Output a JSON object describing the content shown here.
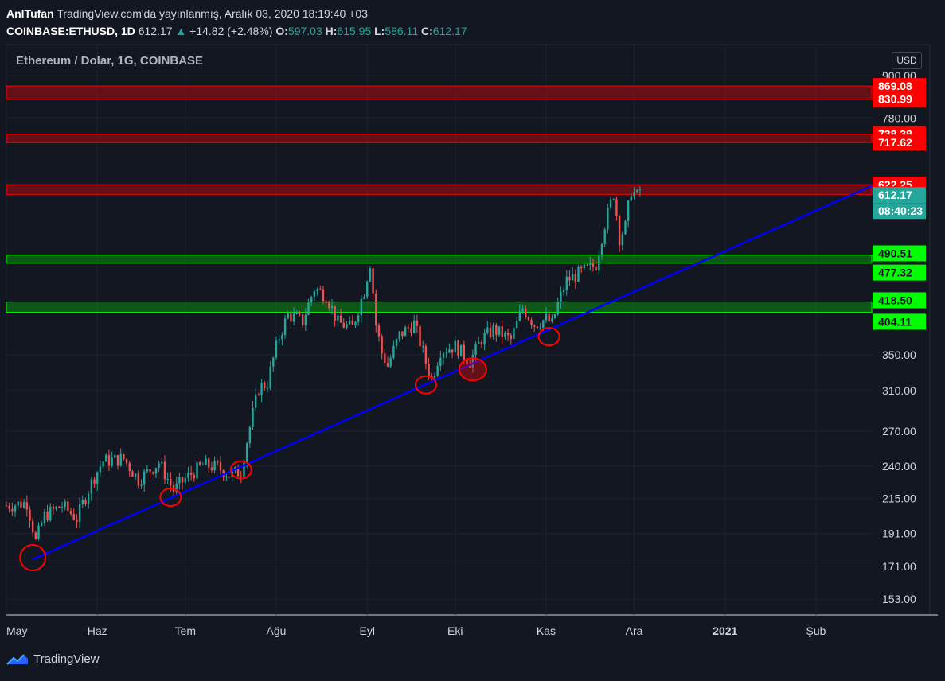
{
  "header": {
    "author": "AnlTufan",
    "published": "TradingView.com'da yayınlanmış, Aralık 03, 2020 18:19:40 +03",
    "symbol": "COINBASE:ETHUSD, 1D",
    "last": "612.17",
    "change": "+14.82 (+2.48%)",
    "open_label": "O:",
    "open": "597.03",
    "high_label": "H:",
    "high": "615.95",
    "low_label": "L:",
    "low": "586.11",
    "close_label": "C:",
    "close": "612.17"
  },
  "brand": {
    "name": "TradingView"
  },
  "currency_button": "USD",
  "colors": {
    "background": "#131722",
    "up": "#26a69a",
    "down": "#ef5350",
    "resistance": "#ff0000",
    "support": "#00ff00",
    "trendline": "#0000ff",
    "price_label": "#26a69a"
  },
  "chart_data": {
    "type": "candlestick",
    "title": "Ethereum / Dolar, 1G, COINBASE",
    "y_scale": "log",
    "y_ticks": [
      "153.00",
      "171.00",
      "191.00",
      "215.00",
      "240.00",
      "270.00",
      "310.00",
      "350.00",
      "780.00",
      "900.00"
    ],
    "ylim": [
      145,
      1000
    ],
    "x_ticks": [
      {
        "label": "May",
        "date": "2020-05-01"
      },
      {
        "label": "Haz",
        "date": "2020-06-01"
      },
      {
        "label": "Tem",
        "date": "2020-07-01"
      },
      {
        "label": "Ağu",
        "date": "2020-08-01"
      },
      {
        "label": "Eyl",
        "date": "2020-09-01"
      },
      {
        "label": "Eki",
        "date": "2020-10-01"
      },
      {
        "label": "Kas",
        "date": "2020-11-01"
      },
      {
        "label": "Ara",
        "date": "2020-12-01"
      },
      {
        "label": "2021",
        "date": "2021-01-01"
      },
      {
        "label": "Şub",
        "date": "2021-02-01"
      }
    ],
    "xlim": [
      "2020-05-01",
      "2021-02-20"
    ],
    "close_path": [
      {
        "date": "2020-05-01",
        "close": 210
      },
      {
        "date": "2020-05-08",
        "close": 212
      },
      {
        "date": "2020-05-11",
        "close": 186
      },
      {
        "date": "2020-05-14",
        "close": 203
      },
      {
        "date": "2020-05-20",
        "close": 210
      },
      {
        "date": "2020-05-25",
        "close": 201
      },
      {
        "date": "2020-05-31",
        "close": 232
      },
      {
        "date": "2020-06-03",
        "close": 244
      },
      {
        "date": "2020-06-10",
        "close": 246
      },
      {
        "date": "2020-06-15",
        "close": 229
      },
      {
        "date": "2020-06-22",
        "close": 243
      },
      {
        "date": "2020-06-27",
        "close": 221
      },
      {
        "date": "2020-07-01",
        "close": 230
      },
      {
        "date": "2020-07-07",
        "close": 241
      },
      {
        "date": "2020-07-12",
        "close": 239
      },
      {
        "date": "2020-07-16",
        "close": 233
      },
      {
        "date": "2020-07-20",
        "close": 236
      },
      {
        "date": "2020-07-23",
        "close": 274
      },
      {
        "date": "2020-07-26",
        "close": 312
      },
      {
        "date": "2020-07-29",
        "close": 318
      },
      {
        "date": "2020-08-02",
        "close": 372
      },
      {
        "date": "2020-08-05",
        "close": 400
      },
      {
        "date": "2020-08-10",
        "close": 392
      },
      {
        "date": "2020-08-14",
        "close": 438
      },
      {
        "date": "2020-08-18",
        "close": 428
      },
      {
        "date": "2020-08-22",
        "close": 390
      },
      {
        "date": "2020-08-27",
        "close": 383
      },
      {
        "date": "2020-08-31",
        "close": 435
      },
      {
        "date": "2020-09-02",
        "close": 478
      },
      {
        "date": "2020-09-04",
        "close": 387
      },
      {
        "date": "2020-09-06",
        "close": 352
      },
      {
        "date": "2020-09-08",
        "close": 337
      },
      {
        "date": "2020-09-12",
        "close": 374
      },
      {
        "date": "2020-09-17",
        "close": 389
      },
      {
        "date": "2020-09-21",
        "close": 341
      },
      {
        "date": "2020-09-23",
        "close": 322
      },
      {
        "date": "2020-09-26",
        "close": 355
      },
      {
        "date": "2020-10-01",
        "close": 360
      },
      {
        "date": "2020-10-06",
        "close": 342
      },
      {
        "date": "2020-10-10",
        "close": 369
      },
      {
        "date": "2020-10-14",
        "close": 381
      },
      {
        "date": "2020-10-20",
        "close": 368
      },
      {
        "date": "2020-10-24",
        "close": 410
      },
      {
        "date": "2020-10-28",
        "close": 388
      },
      {
        "date": "2020-11-01",
        "close": 395
      },
      {
        "date": "2020-11-03",
        "close": 388
      },
      {
        "date": "2020-11-05",
        "close": 415
      },
      {
        "date": "2020-11-08",
        "close": 450
      },
      {
        "date": "2020-11-14",
        "close": 465
      },
      {
        "date": "2020-11-18",
        "close": 475
      },
      {
        "date": "2020-11-21",
        "close": 545
      },
      {
        "date": "2020-11-24",
        "close": 604
      },
      {
        "date": "2020-11-26",
        "close": 520
      },
      {
        "date": "2020-11-28",
        "close": 540
      },
      {
        "date": "2020-11-30",
        "close": 612
      },
      {
        "date": "2020-12-02",
        "close": 598
      },
      {
        "date": "2020-12-03",
        "close": 612
      }
    ],
    "trendline": {
      "start": {
        "date": "2020-05-10",
        "price": 175
      },
      "end": {
        "date": "2021-02-20",
        "price": 620
      }
    },
    "touch_points": [
      {
        "date": "2020-05-10",
        "price": 176
      },
      {
        "date": "2020-06-26",
        "price": 216
      },
      {
        "date": "2020-07-20",
        "price": 237
      },
      {
        "date": "2020-09-21",
        "price": 316
      },
      {
        "date": "2020-10-07",
        "price": 333
      },
      {
        "date": "2020-11-02",
        "price": 372
      }
    ],
    "resistance_zones": [
      {
        "top": "869.08",
        "bottom": "830.99"
      },
      {
        "top": "738.38",
        "bottom": "717.62"
      },
      {
        "top": "622.25",
        "bottom": "602.29"
      }
    ],
    "support_zones": [
      {
        "top": "490.51",
        "bottom": "477.32"
      },
      {
        "top": "418.50",
        "bottom": "404.11"
      }
    ],
    "last_price": "612.17",
    "countdown": "08:40:23"
  }
}
